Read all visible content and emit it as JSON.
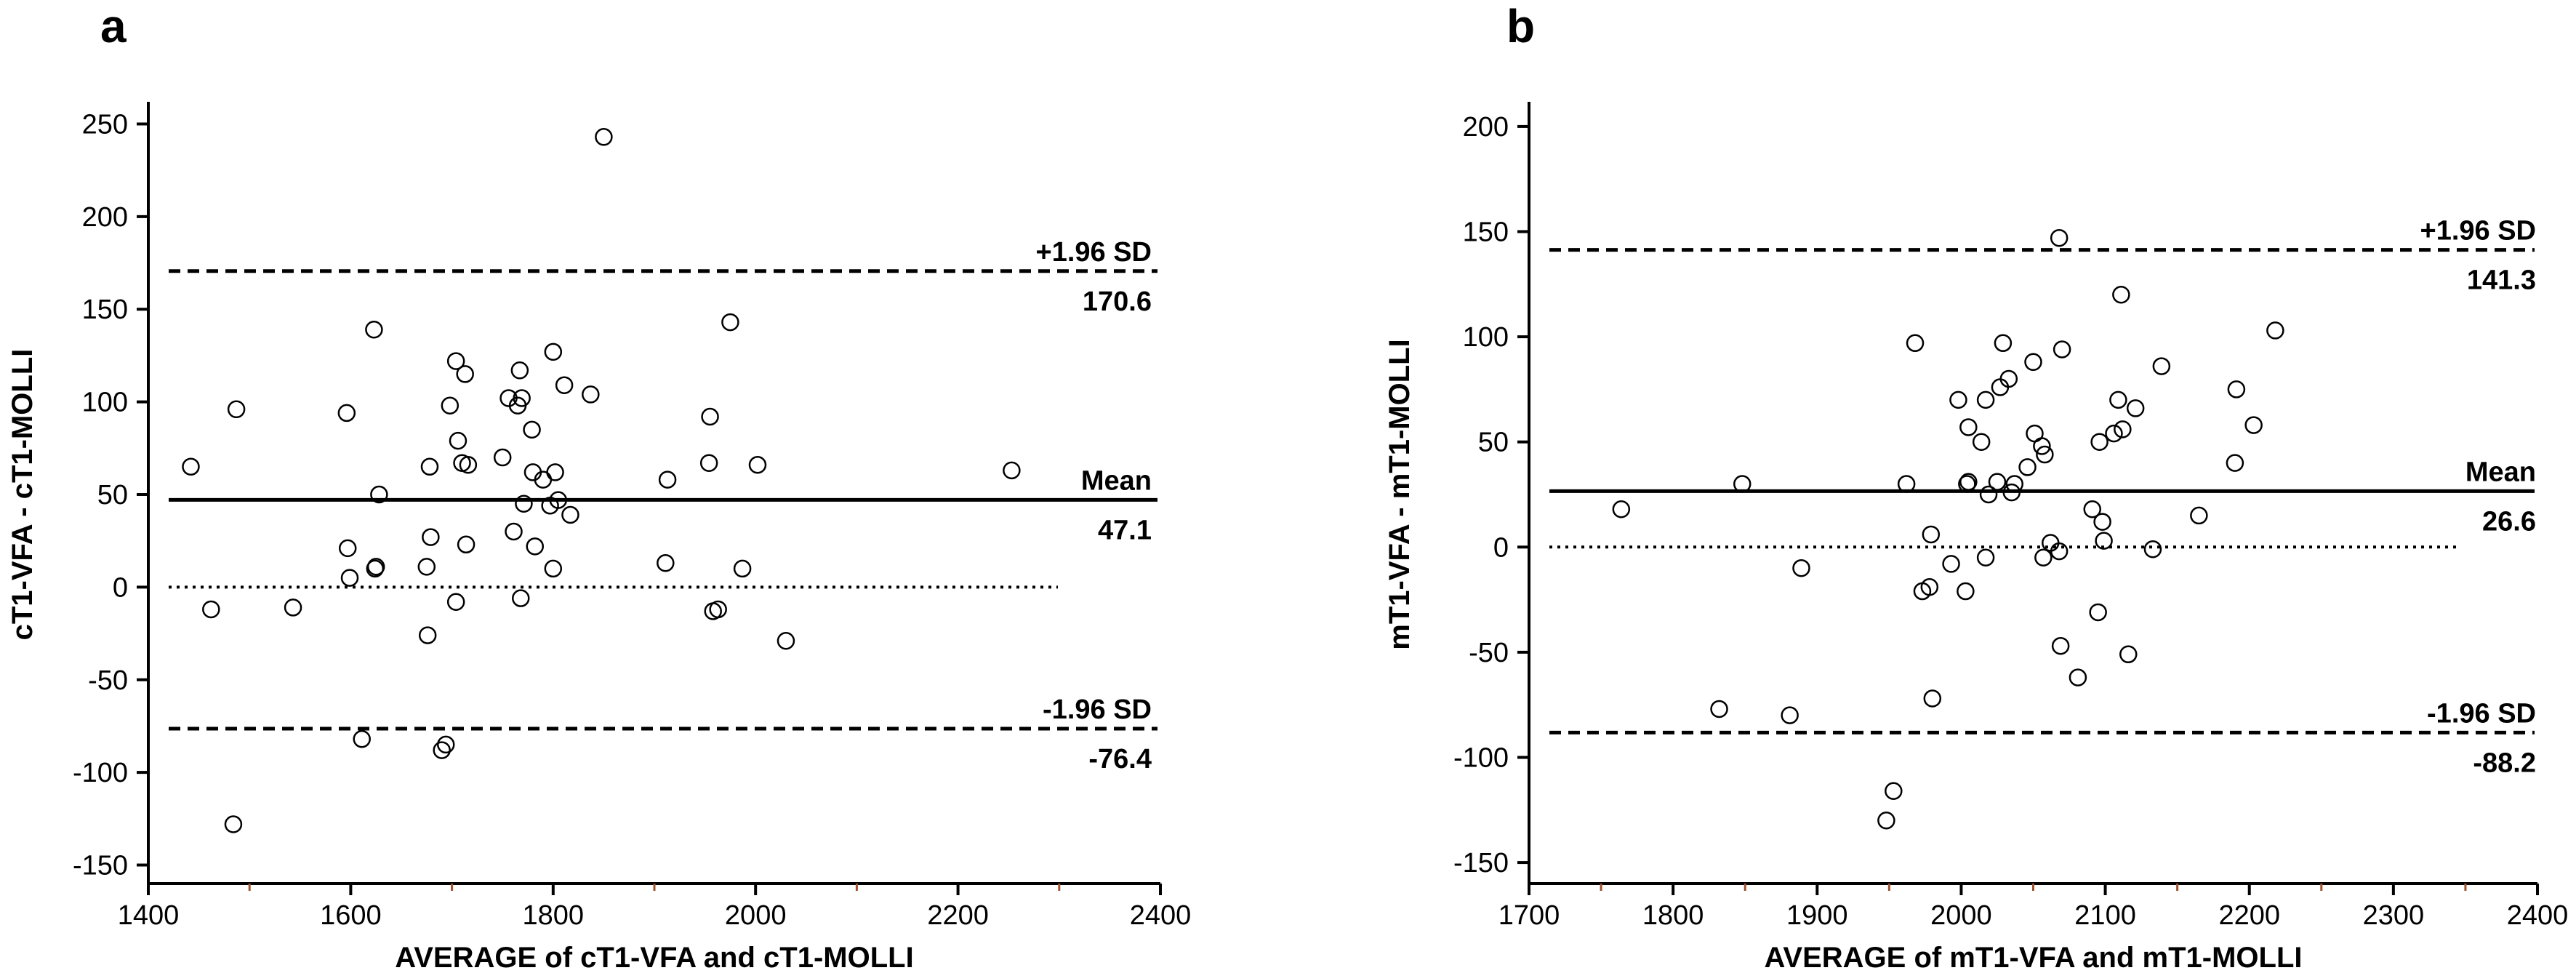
{
  "chart_data": [
    {
      "type": "scatter",
      "subtype": "bland-altman",
      "panel_label": "a",
      "xlabel": "AVERAGE of cT1-VFA and cT1-MOLLI",
      "ylabel": "cT1-VFA - cT1-MOLLI",
      "xlim": [
        1400,
        2400
      ],
      "ylim": [
        -160,
        260
      ],
      "xticks": [
        1400,
        1600,
        1800,
        2000,
        2200,
        2400
      ],
      "yticks": [
        -150,
        -100,
        -50,
        0,
        50,
        100,
        150,
        200,
        250
      ],
      "reference_lines": [
        {
          "name": "upper-loa",
          "style": "dashed",
          "value": 170.6,
          "label_top": "+1.96 SD",
          "label_bottom": "170.6"
        },
        {
          "name": "mean",
          "style": "solid",
          "value": 47.1,
          "label_top": "Mean",
          "label_bottom": "47.1"
        },
        {
          "name": "zero",
          "style": "dotted",
          "value": 0
        },
        {
          "name": "lower-loa",
          "style": "dashed",
          "value": -76.4,
          "label_top": "-1.96 SD",
          "label_bottom": "-76.4"
        }
      ],
      "points": [
        [
          1442,
          65
        ],
        [
          1462,
          -12
        ],
        [
          1484,
          -128
        ],
        [
          1487,
          96
        ],
        [
          1543,
          -11
        ],
        [
          1596,
          94
        ],
        [
          1597,
          21
        ],
        [
          1599,
          5
        ],
        [
          1611,
          -82
        ],
        [
          1623,
          139
        ],
        [
          1624,
          10
        ],
        [
          1625,
          11
        ],
        [
          1628,
          50
        ],
        [
          1675,
          11
        ],
        [
          1676,
          -26
        ],
        [
          1678,
          65
        ],
        [
          1679,
          27
        ],
        [
          1690,
          -88
        ],
        [
          1694,
          -85
        ],
        [
          1698,
          98
        ],
        [
          1704,
          122
        ],
        [
          1704,
          -8
        ],
        [
          1706,
          79
        ],
        [
          1710,
          67
        ],
        [
          1713,
          115
        ],
        [
          1714,
          23
        ],
        [
          1716,
          66
        ],
        [
          1750,
          70
        ],
        [
          1756,
          102
        ],
        [
          1761,
          30
        ],
        [
          1765,
          98
        ],
        [
          1767,
          117
        ],
        [
          1768,
          -6
        ],
        [
          1769,
          102
        ],
        [
          1771,
          45
        ],
        [
          1779,
          85
        ],
        [
          1780,
          62
        ],
        [
          1782,
          22
        ],
        [
          1790,
          58
        ],
        [
          1797,
          44
        ],
        [
          1800,
          127
        ],
        [
          1800,
          10
        ],
        [
          1802,
          62
        ],
        [
          1805,
          47
        ],
        [
          1811,
          109
        ],
        [
          1817,
          39
        ],
        [
          1837,
          104
        ],
        [
          1850,
          243
        ],
        [
          1911,
          13
        ],
        [
          1913,
          58
        ],
        [
          1954,
          67
        ],
        [
          1955,
          92
        ],
        [
          1958,
          -13
        ],
        [
          1963,
          -12
        ],
        [
          1975,
          143
        ],
        [
          1987,
          10
        ],
        [
          2002,
          66
        ],
        [
          2030,
          -29
        ],
        [
          2253,
          63
        ]
      ]
    },
    {
      "type": "scatter",
      "subtype": "bland-altman",
      "panel_label": "b",
      "xlabel": "AVERAGE of mT1-VFA and mT1-MOLLI",
      "ylabel": "mT1-VFA - mT1-MOLLI",
      "xlim": [
        1700,
        2400
      ],
      "ylim": [
        -160,
        210
      ],
      "xticks": [
        1700,
        1800,
        1900,
        2000,
        2100,
        2200,
        2300,
        2400
      ],
      "yticks": [
        -150,
        -100,
        -50,
        0,
        50,
        100,
        150,
        200
      ],
      "reference_lines": [
        {
          "name": "upper-loa",
          "style": "dashed",
          "value": 141.3,
          "label_top": "+1.96 SD",
          "label_bottom": "141.3"
        },
        {
          "name": "mean",
          "style": "solid",
          "value": 26.6,
          "label_top": "Mean",
          "label_bottom": "26.6"
        },
        {
          "name": "zero",
          "style": "dotted",
          "value": 0
        },
        {
          "name": "lower-loa",
          "style": "dashed",
          "value": -88.2,
          "label_top": "-1.96 SD",
          "label_bottom": "-88.2"
        }
      ],
      "points": [
        [
          1764,
          18
        ],
        [
          1832,
          -77
        ],
        [
          1848,
          30
        ],
        [
          1881,
          -80
        ],
        [
          1889,
          -10
        ],
        [
          1948,
          -130
        ],
        [
          1953,
          -116
        ],
        [
          1962,
          30
        ],
        [
          1968,
          97
        ],
        [
          1973,
          -21
        ],
        [
          1978,
          -19
        ],
        [
          1979,
          6
        ],
        [
          1980,
          -72
        ],
        [
          1993,
          -8
        ],
        [
          1998,
          70
        ],
        [
          2003,
          -21
        ],
        [
          2004,
          30
        ],
        [
          2005,
          57
        ],
        [
          2005,
          31
        ],
        [
          2014,
          50
        ],
        [
          2017,
          70
        ],
        [
          2017,
          -5
        ],
        [
          2019,
          25
        ],
        [
          2025,
          31
        ],
        [
          2027,
          76
        ],
        [
          2029,
          97
        ],
        [
          2033,
          80
        ],
        [
          2035,
          26
        ],
        [
          2037,
          30
        ],
        [
          2046,
          38
        ],
        [
          2050,
          88
        ],
        [
          2051,
          54
        ],
        [
          2056,
          48
        ],
        [
          2057,
          -5
        ],
        [
          2058,
          44
        ],
        [
          2062,
          2
        ],
        [
          2068,
          147
        ],
        [
          2068,
          -2
        ],
        [
          2069,
          -47
        ],
        [
          2070,
          94
        ],
        [
          2081,
          -62
        ],
        [
          2091,
          18
        ],
        [
          2095,
          -31
        ],
        [
          2096,
          50
        ],
        [
          2098,
          12
        ],
        [
          2099,
          3
        ],
        [
          2106,
          54
        ],
        [
          2109,
          70
        ],
        [
          2111,
          120
        ],
        [
          2112,
          56
        ],
        [
          2116,
          -51
        ],
        [
          2121,
          66
        ],
        [
          2133,
          -1
        ],
        [
          2139,
          86
        ],
        [
          2165,
          15
        ],
        [
          2190,
          40
        ],
        [
          2191,
          75
        ],
        [
          2203,
          58
        ],
        [
          2218,
          103
        ]
      ]
    }
  ]
}
